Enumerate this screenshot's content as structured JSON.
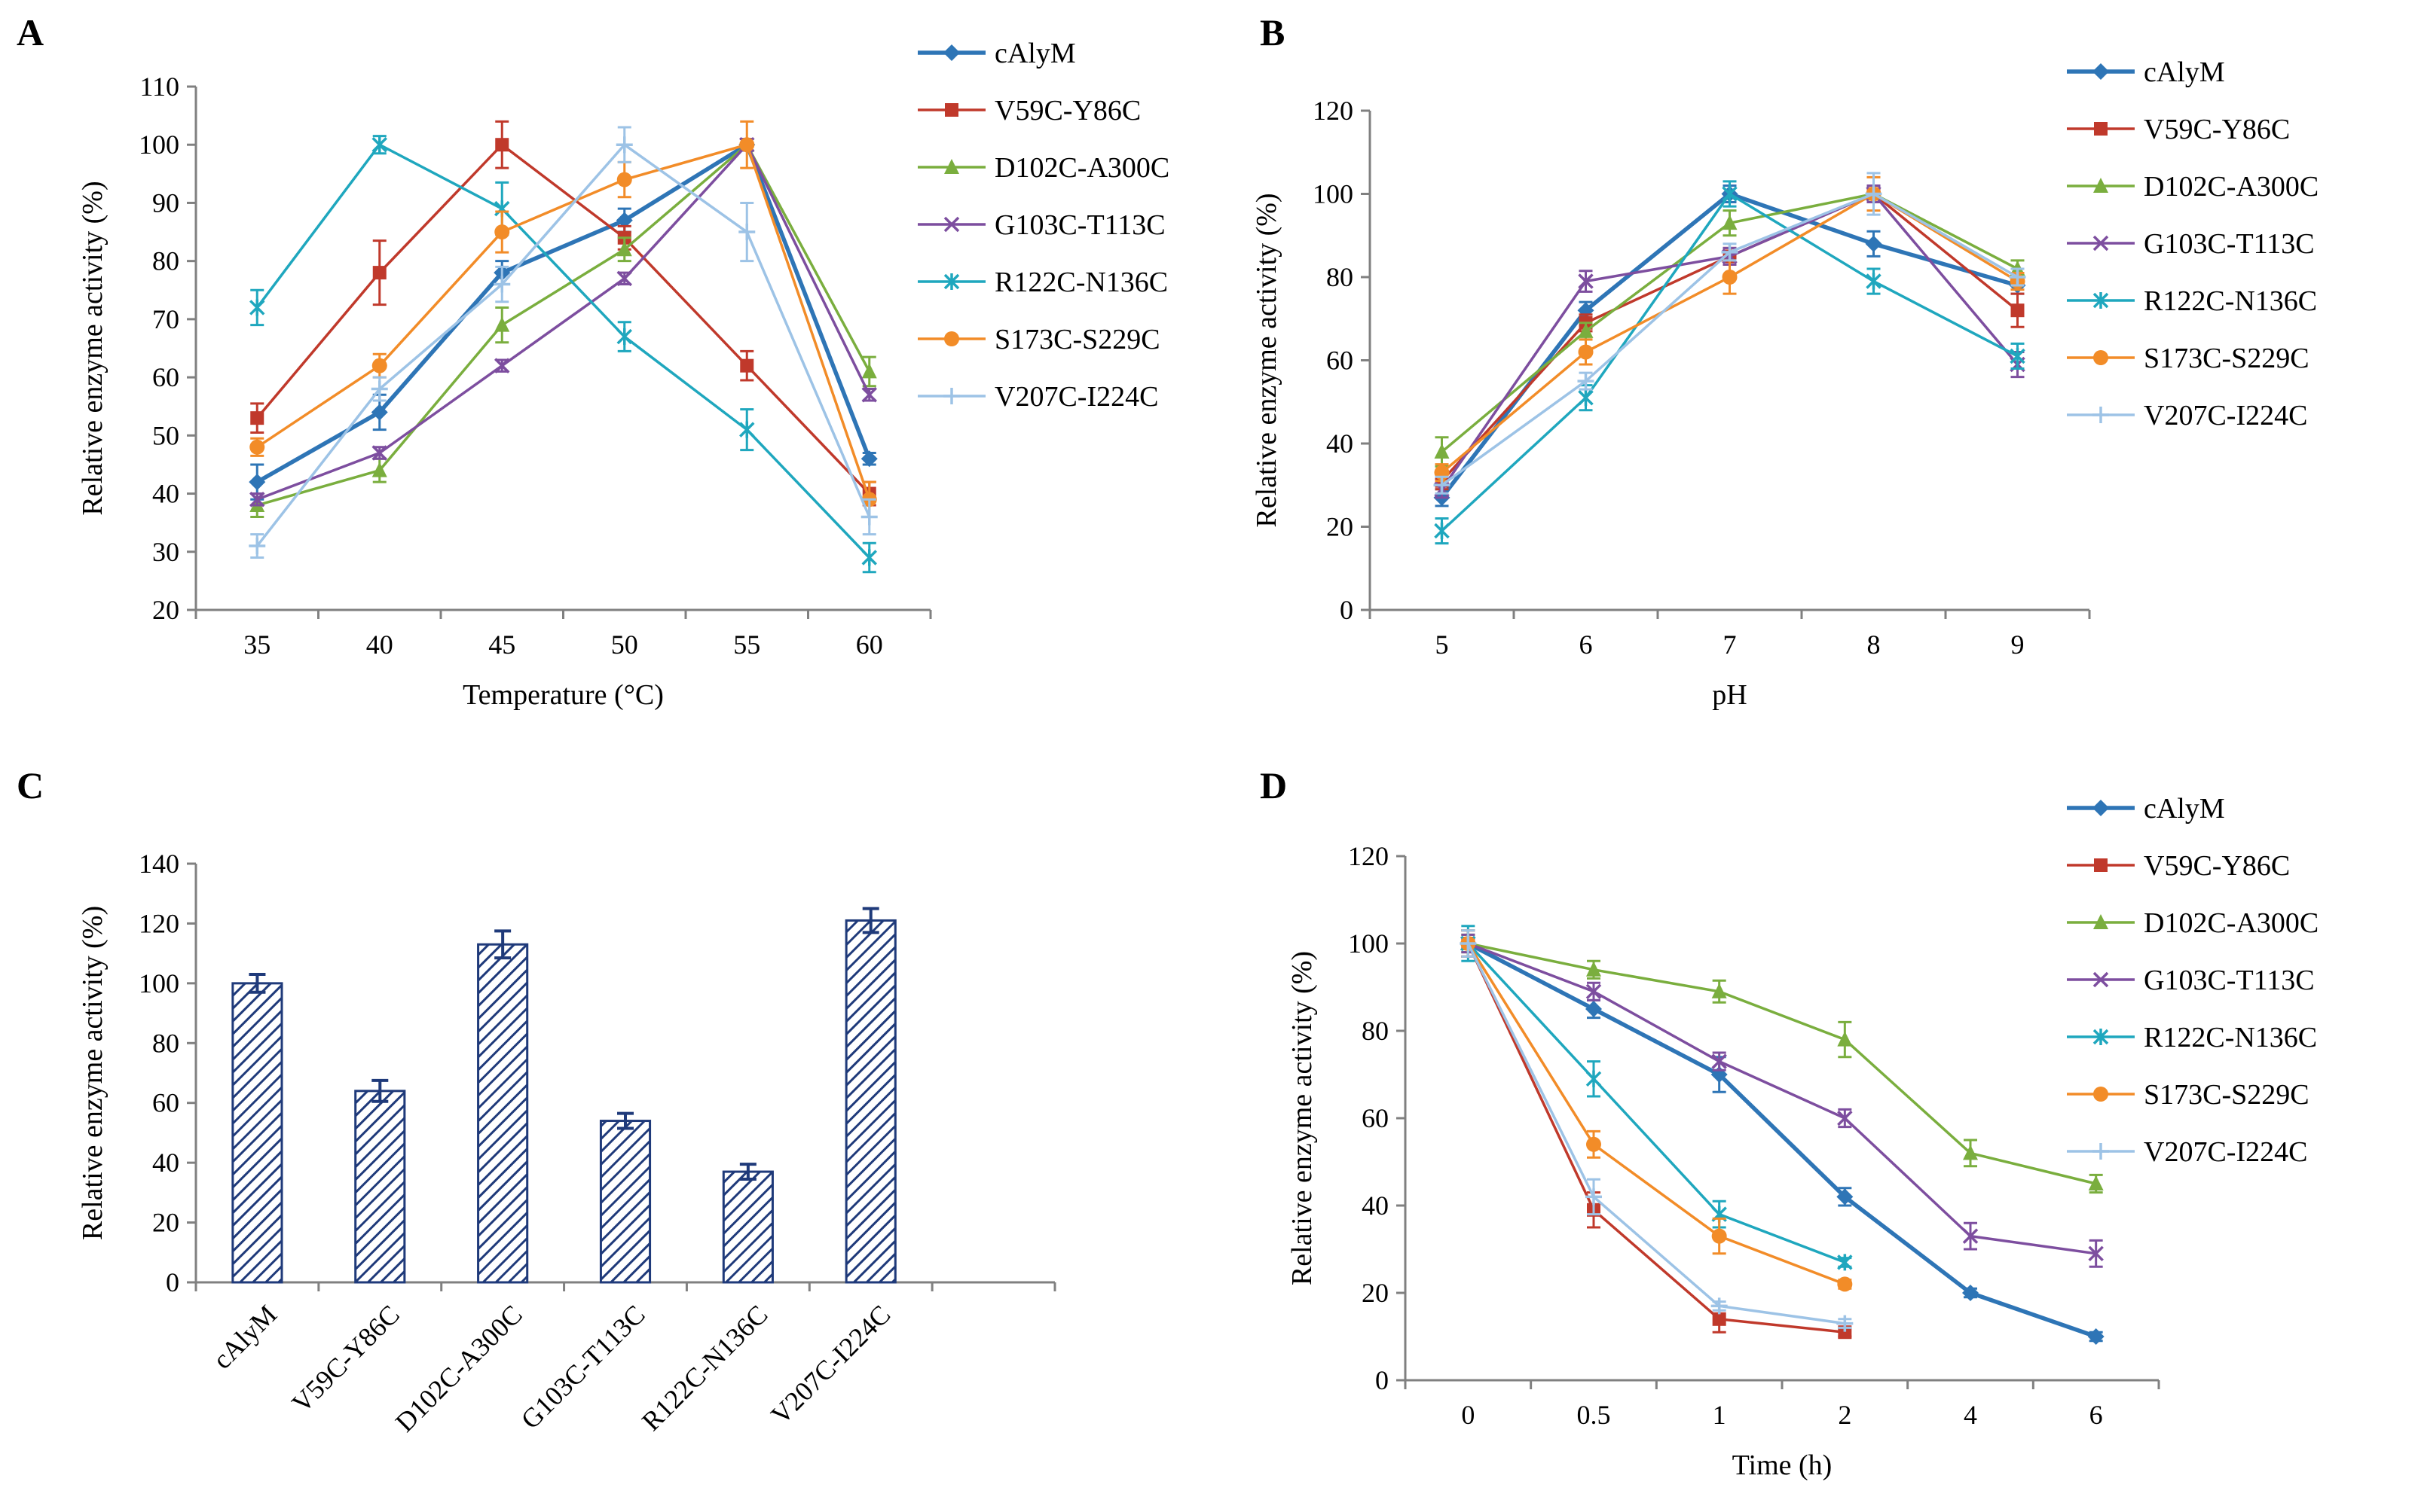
{
  "figure": {
    "markers": {
      "cAlyM": "diamond",
      "V59C-Y86C": "square",
      "D102C-A300C": "triangle",
      "G103C-T113C": "x",
      "R122C-N136C": "asterisk",
      "S173C-S229C": "circle",
      "V207C-I224C": "plus"
    },
    "colors": {
      "cAlyM": "#2E75B6",
      "V59C-Y86C": "#C0392B",
      "D102C-A300C": "#7AAE3E",
      "G103C-T113C": "#7D4E9F",
      "R122C-N136C": "#1FA7BE",
      "S173C-S229C": "#F28C28",
      "V207C-I224C": "#9DC3E6",
      "bar": "#1F3A7A"
    }
  },
  "chart_data": [
    {
      "panel": "A",
      "type": "line",
      "xlabel": "Temperature (°C)",
      "ylabel": "Relative enzyme activity (%)",
      "categories": [
        "35",
        "40",
        "45",
        "50",
        "55",
        "60"
      ],
      "ylim": [
        20,
        110
      ],
      "yticks": [
        20,
        30,
        40,
        50,
        60,
        70,
        80,
        90,
        100,
        110
      ],
      "series": [
        {
          "name": "cAlyM",
          "values": [
            42,
            54,
            78,
            87,
            100,
            46
          ],
          "err": [
            3,
            3,
            2,
            2,
            1,
            1
          ]
        },
        {
          "name": "V59C-Y86C",
          "values": [
            53,
            78,
            100,
            84,
            62,
            40
          ],
          "err": [
            2.5,
            5.5,
            4,
            2,
            2.5,
            2
          ]
        },
        {
          "name": "D102C-A300C",
          "values": [
            38,
            44,
            69,
            82,
            100,
            61
          ],
          "err": [
            2,
            2,
            3,
            2,
            1,
            2.5
          ]
        },
        {
          "name": "G103C-T113C",
          "values": [
            39,
            47,
            62,
            77,
            100,
            57
          ],
          "err": [
            1,
            1,
            1,
            1,
            1,
            1
          ]
        },
        {
          "name": "R122C-N136C",
          "values": [
            72,
            100,
            89,
            67,
            51,
            29
          ],
          "err": [
            3,
            1.5,
            4.5,
            2.5,
            3.5,
            2.5
          ]
        },
        {
          "name": "S173C-S229C",
          "values": [
            48,
            62,
            85,
            94,
            100,
            39
          ],
          "err": [
            1.5,
            2,
            3.5,
            3,
            4,
            3
          ]
        },
        {
          "name": "V207C-I224C",
          "values": [
            31,
            58,
            76,
            100,
            85,
            36
          ],
          "err": [
            2,
            2,
            3,
            3,
            5,
            3
          ]
        }
      ]
    },
    {
      "panel": "B",
      "type": "line",
      "xlabel": "pH",
      "ylabel": "Relative enzyme activity (%)",
      "categories": [
        "5",
        "6",
        "7",
        "8",
        "9"
      ],
      "ylim": [
        0,
        120
      ],
      "yticks": [
        0,
        20,
        40,
        60,
        80,
        100,
        120
      ],
      "series": [
        {
          "name": "cAlyM",
          "values": [
            27,
            72,
            100,
            88,
            78
          ],
          "err": [
            2,
            2,
            2,
            3,
            2
          ]
        },
        {
          "name": "V59C-Y86C",
          "values": [
            31,
            69,
            85,
            100,
            72
          ],
          "err": [
            2,
            2,
            2,
            2,
            4
          ]
        },
        {
          "name": "D102C-A300C",
          "values": [
            38,
            67,
            93,
            100,
            82
          ],
          "err": [
            3.5,
            2,
            3,
            2,
            2
          ]
        },
        {
          "name": "G103C-T113C",
          "values": [
            29,
            79,
            85,
            100,
            59
          ],
          "err": [
            2,
            2.5,
            2,
            2,
            3
          ]
        },
        {
          "name": "R122C-N136C",
          "values": [
            19,
            51,
            100,
            79,
            61
          ],
          "err": [
            3,
            3,
            3,
            3,
            3
          ]
        },
        {
          "name": "S173C-S229C",
          "values": [
            33,
            62,
            80,
            100,
            79
          ],
          "err": [
            2,
            3,
            4,
            4,
            2
          ]
        },
        {
          "name": "V207C-I224C",
          "values": [
            30,
            55,
            86,
            100,
            80
          ],
          "err": [
            2,
            2,
            2,
            5,
            2
          ]
        }
      ]
    },
    {
      "panel": "C",
      "type": "bar",
      "xlabel": "",
      "ylabel": "Relative enzyme activity (%)",
      "categories": [
        "cAlyM",
        "V59C-Y86C",
        "D102C-A300C",
        "G103C-T113C",
        "R122C-N136C",
        "V207C-I224C"
      ],
      "values": [
        100,
        64,
        113,
        54,
        37,
        121
      ],
      "err": [
        3,
        3.5,
        4.5,
        2.5,
        2.5,
        4
      ],
      "ylim": [
        0,
        140
      ],
      "yticks": [
        0,
        20,
        40,
        60,
        80,
        100,
        120,
        140
      ]
    },
    {
      "panel": "D",
      "type": "line",
      "xlabel": "Time (h)",
      "ylabel": "Relative enzyme activity (%)",
      "categories": [
        "0",
        "0.5",
        "1",
        "2",
        "4",
        "6"
      ],
      "ylim": [
        0,
        120
      ],
      "yticks": [
        0,
        20,
        40,
        60,
        80,
        100,
        120
      ],
      "series": [
        {
          "name": "cAlyM",
          "values": [
            100,
            85,
            70,
            42,
            20,
            10
          ],
          "err": [
            3,
            2,
            4,
            2,
            1,
            1
          ]
        },
        {
          "name": "V59C-Y86C",
          "values": [
            100,
            39,
            14,
            11,
            null,
            null
          ],
          "err": [
            3,
            4,
            3,
            1,
            0,
            0
          ]
        },
        {
          "name": "D102C-A300C",
          "values": [
            100,
            94,
            89,
            78,
            52,
            45
          ],
          "err": [
            2,
            2,
            2.5,
            4,
            3,
            2
          ]
        },
        {
          "name": "G103C-T113C",
          "values": [
            100,
            89,
            73,
            60,
            33,
            29
          ],
          "err": [
            2,
            2,
            2,
            2,
            3,
            3
          ]
        },
        {
          "name": "R122C-N136C",
          "values": [
            100,
            69,
            38,
            27,
            null,
            null
          ],
          "err": [
            4,
            4,
            3,
            1,
            0,
            0
          ]
        },
        {
          "name": "S173C-S229C",
          "values": [
            100,
            54,
            33,
            22,
            null,
            null
          ],
          "err": [
            3,
            3,
            4,
            1,
            0,
            0
          ]
        },
        {
          "name": "V207C-I224C",
          "values": [
            100,
            42,
            17,
            13,
            null,
            null
          ],
          "err": [
            3,
            4,
            1,
            1,
            0,
            0
          ]
        }
      ]
    }
  ]
}
